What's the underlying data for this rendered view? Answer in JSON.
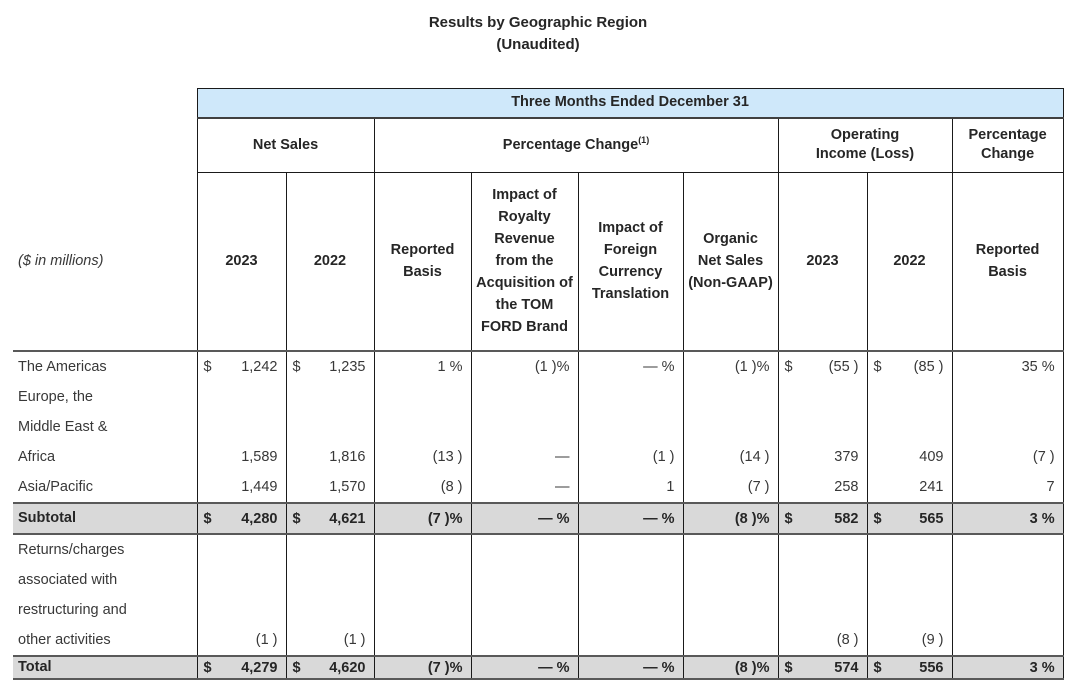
{
  "title": "Results by Geographic Region",
  "subtitle": "(Unaudited)",
  "theme": {
    "header_fill": "#cfe8fa",
    "band_fill": "#d9d9d9",
    "grid_line": "#1a1a1a",
    "rule_line": "#595959",
    "text": "#333333"
  },
  "table": {
    "period_header": "Three Months Ended December 31",
    "row_label_note": "($ in millions)",
    "groups": [
      {
        "label": "Net Sales",
        "sup": "",
        "colspan": 2
      },
      {
        "label": "Percentage Change",
        "sup": "(1)",
        "colspan": 4
      },
      {
        "label": "Operating\nIncome (Loss)",
        "sup": "",
        "colspan": 2
      },
      {
        "label": "Percentage\nChange",
        "sup": "",
        "colspan": 1
      }
    ],
    "columns": [
      "2023",
      "2022",
      "Reported\nBasis",
      "Impact of\nRoyalty\nRevenue\nfrom the\nAcquisition of\nthe TOM\nFORD Brand",
      "Impact of\nForeign\nCurrency\nTranslation",
      "Organic\nNet Sales\n(Non-GAAP)",
      "2023",
      "2022",
      "Reported\nBasis"
    ],
    "rows": [
      {
        "label": "The Americas",
        "style": "data",
        "cells": [
          {
            "d": "$",
            "v": "1,242"
          },
          {
            "d": "$",
            "v": "1,235"
          },
          "1 %",
          "(1 )%",
          "— %",
          "(1 )%",
          {
            "d": "$",
            "v": "(55 )"
          },
          {
            "d": "$",
            "v": "(85 )"
          },
          "35 %"
        ]
      },
      {
        "label": "Europe, the\nMiddle East &\nAfrica",
        "style": "data",
        "cells": [
          "1,589",
          "1,816",
          "(13 )",
          "—",
          "(1 )",
          "(14 )",
          "379",
          "409",
          "(7 )"
        ]
      },
      {
        "label": "Asia/Pacific",
        "style": "data",
        "cells": [
          "1,449",
          "1,570",
          "(8 )",
          "—",
          "1",
          "(7 )",
          "258",
          "241",
          "7"
        ]
      },
      {
        "label": "Subtotal",
        "style": "subtotal",
        "cells": [
          {
            "d": "$",
            "v": "4,280"
          },
          {
            "d": "$",
            "v": "4,621"
          },
          "(7 )%",
          "— %",
          "— %",
          "(8 )%",
          {
            "d": "$",
            "v": "582"
          },
          {
            "d": "$",
            "v": "565"
          },
          "3 %"
        ]
      },
      {
        "label": "Returns/charges\nassociated with\nrestructuring and\nother activities",
        "style": "data",
        "cells": [
          "(1 )",
          "(1 )",
          "",
          "",
          "",
          "",
          "(8 )",
          "(9 )",
          ""
        ]
      },
      {
        "label": "Total",
        "style": "total",
        "cells": [
          {
            "d": "$",
            "v": "4,279"
          },
          {
            "d": "$",
            "v": "4,620"
          },
          "(7 )%",
          "— %",
          "— %",
          "(8 )%",
          {
            "d": "$",
            "v": "574"
          },
          {
            "d": "$",
            "v": "556"
          },
          "3 %"
        ]
      }
    ]
  }
}
